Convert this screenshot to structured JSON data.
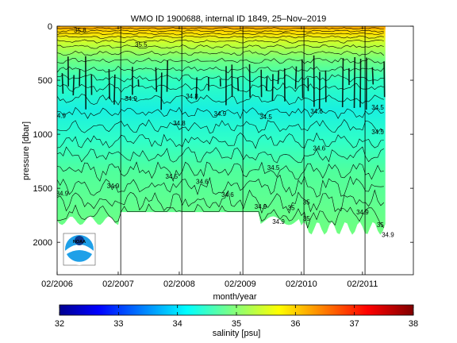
{
  "chart_data": {
    "type": "heatmap",
    "title": "WMO ID 1900688, internal ID 1849, 25–Nov–2019",
    "xlabel": "month/year",
    "ylabel": "pressure [dbar]",
    "x_ticks": [
      "02/2006",
      "02/2007",
      "02/2008",
      "02/2009",
      "02/2010",
      "02/2011"
    ],
    "x_tick_months_from_start": [
      0,
      12,
      24,
      36,
      48,
      60
    ],
    "xlim_months_from_start": [
      0,
      70
    ],
    "y_ticks": [
      0,
      500,
      1000,
      1500,
      2000
    ],
    "ylim": [
      2300,
      0
    ],
    "colorbar": {
      "label": "salinity [psu]",
      "ticks": [
        32,
        33,
        34,
        35,
        36,
        37,
        38
      ],
      "range": [
        32,
        38
      ],
      "colormap": "jet"
    },
    "contour_labels": [
      {
        "text": "35.8",
        "month": 4.5,
        "pressure": 60
      },
      {
        "text": "35.5",
        "month": 16.5,
        "pressure": 190
      },
      {
        "text": "34.9",
        "month": 14.5,
        "pressure": 690
      },
      {
        "text": "34.8",
        "month": 26.5,
        "pressure": 670
      },
      {
        "text": "34.8",
        "month": 24.0,
        "pressure": 920
      },
      {
        "text": "34.9",
        "month": 32.0,
        "pressure": 830
      },
      {
        "text": "34.5",
        "month": 41.0,
        "pressure": 860
      },
      {
        "text": "34.6",
        "month": 51.0,
        "pressure": 810
      },
      {
        "text": "34.5",
        "month": 63.0,
        "pressure": 770
      },
      {
        "text": "34.9",
        "month": 0.5,
        "pressure": 850
      },
      {
        "text": "34.5",
        "month": 22.5,
        "pressure": 1410
      },
      {
        "text": "34.6",
        "month": 28.5,
        "pressure": 1460
      },
      {
        "text": "34.6",
        "month": 33.5,
        "pressure": 1580
      },
      {
        "text": "34.5",
        "month": 42.5,
        "pressure": 1330
      },
      {
        "text": "34.6",
        "month": 51.5,
        "pressure": 1150
      },
      {
        "text": "34.5",
        "month": 63.0,
        "pressure": 1000
      },
      {
        "text": "34.9",
        "month": 11.0,
        "pressure": 1500
      },
      {
        "text": "34.9",
        "month": 1.0,
        "pressure": 1570
      },
      {
        "text": "34.9",
        "month": 40.0,
        "pressure": 1690
      },
      {
        "text": "35",
        "month": 46.0,
        "pressure": 1700
      },
      {
        "text": "35",
        "month": 49.0,
        "pressure": 1650
      },
      {
        "text": "34.9",
        "month": 43.5,
        "pressure": 1830
      },
      {
        "text": "35",
        "month": 49.0,
        "pressure": 1800
      },
      {
        "text": "34.9",
        "month": 60.0,
        "pressure": 1740
      },
      {
        "text": "35",
        "month": 63.5,
        "pressure": 1860
      },
      {
        "text": "34.9",
        "month": 65.0,
        "pressure": 1950
      }
    ],
    "logo": "NOAA"
  }
}
